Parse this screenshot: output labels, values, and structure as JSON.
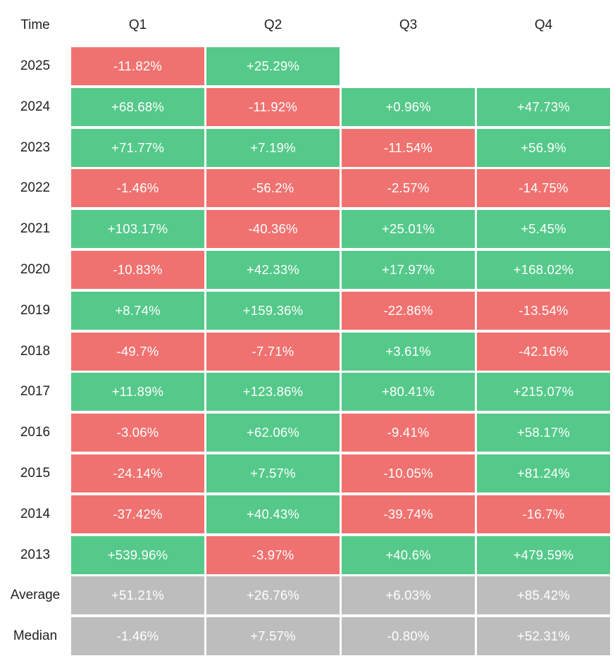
{
  "colors": {
    "positive": "#55c98a",
    "negative": "#f07270",
    "summary": "#bdbdbd",
    "text_on_cell": "#ffffff"
  },
  "chart_data": {
    "type": "heatmap",
    "corner_label": "Time",
    "columns": [
      "Q1",
      "Q2",
      "Q3",
      "Q4"
    ],
    "rows": [
      {
        "label": "2025",
        "values": [
          "-11.82%",
          "+25.29%",
          null,
          null
        ]
      },
      {
        "label": "2024",
        "values": [
          "+68.68%",
          "-11.92%",
          "+0.96%",
          "+47.73%"
        ]
      },
      {
        "label": "2023",
        "values": [
          "+71.77%",
          "+7.19%",
          "-11.54%",
          "+56.9%"
        ]
      },
      {
        "label": "2022",
        "values": [
          "-1.46%",
          "-56.2%",
          "-2.57%",
          "-14.75%"
        ]
      },
      {
        "label": "2021",
        "values": [
          "+103.17%",
          "-40.36%",
          "+25.01%",
          "+5.45%"
        ]
      },
      {
        "label": "2020",
        "values": [
          "-10.83%",
          "+42.33%",
          "+17.97%",
          "+168.02%"
        ]
      },
      {
        "label": "2019",
        "values": [
          "+8.74%",
          "+159.36%",
          "-22.86%",
          "-13.54%"
        ]
      },
      {
        "label": "2018",
        "values": [
          "-49.7%",
          "-7.71%",
          "+3.61%",
          "-42.16%"
        ]
      },
      {
        "label": "2017",
        "values": [
          "+11.89%",
          "+123.86%",
          "+80.41%",
          "+215.07%"
        ]
      },
      {
        "label": "2016",
        "values": [
          "-3.06%",
          "+62.06%",
          "-9.41%",
          "+58.17%"
        ]
      },
      {
        "label": "2015",
        "values": [
          "-24.14%",
          "+7.57%",
          "-10.05%",
          "+81.24%"
        ]
      },
      {
        "label": "2014",
        "values": [
          "-37.42%",
          "+40.43%",
          "-39.74%",
          "-16.7%"
        ]
      },
      {
        "label": "2013",
        "values": [
          "+539.96%",
          "-3.97%",
          "+40.6%",
          "+479.59%"
        ]
      },
      {
        "label": "Average",
        "summary": true,
        "values": [
          "+51.21%",
          "+26.76%",
          "+6.03%",
          "+85.42%"
        ]
      },
      {
        "label": "Median",
        "summary": true,
        "values": [
          "-1.46%",
          "+7.57%",
          "-0.80%",
          "+52.31%"
        ]
      }
    ]
  }
}
